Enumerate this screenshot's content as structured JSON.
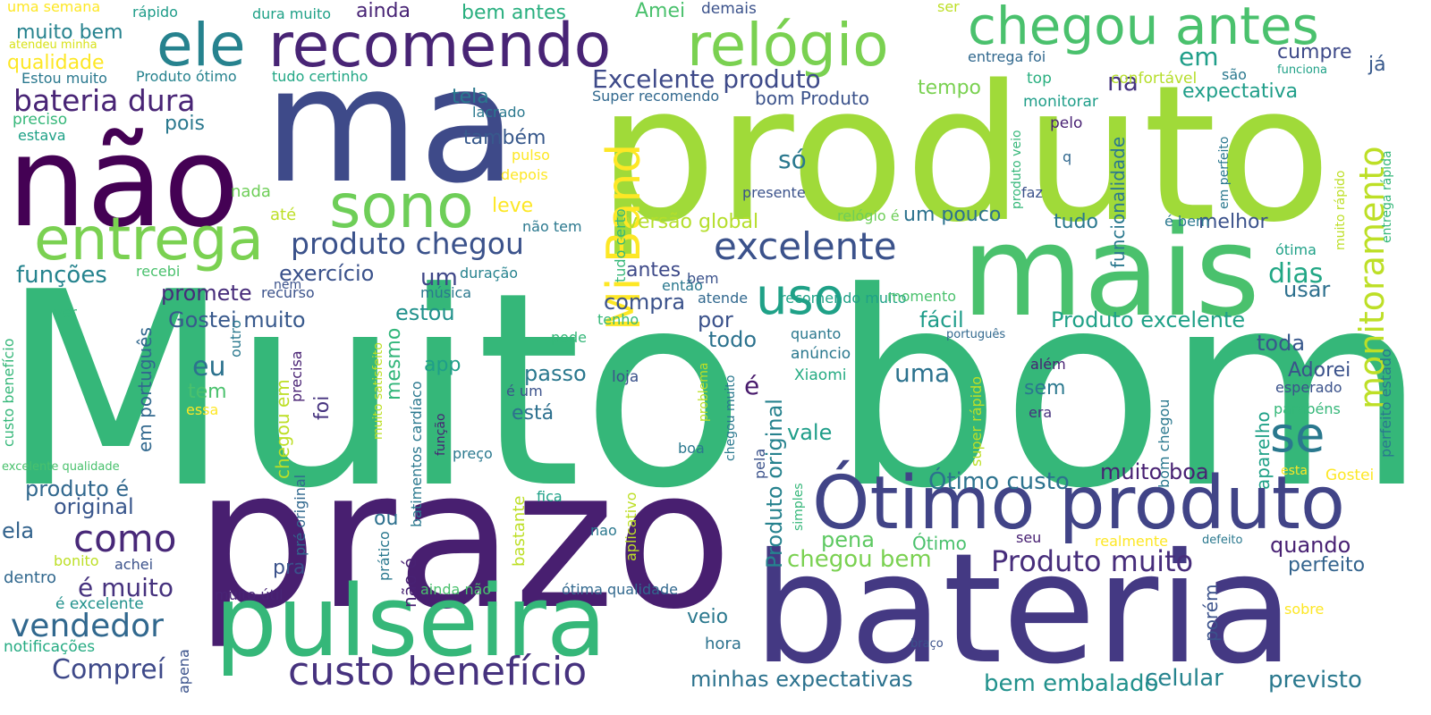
{
  "words": [
    {
      "text": "Muito bom",
      "color": "#35b779"
    },
    {
      "text": "produto",
      "color": "#a0da39"
    },
    {
      "text": "bateria",
      "color": "#443983"
    },
    {
      "text": "prazo",
      "color": "#481f70"
    },
    {
      "text": "ma",
      "color": "#3e4a89"
    },
    {
      "text": "mais",
      "color": "#4ac16d"
    },
    {
      "text": "não",
      "color": "#440154"
    },
    {
      "text": "pulseira",
      "color": "#35b779"
    },
    {
      "text": "Ótimo produto",
      "color": "#414487"
    },
    {
      "text": "recomendo",
      "color": "#482475"
    },
    {
      "text": "entrega",
      "color": "#7ad151"
    },
    {
      "text": "relógio",
      "color": "#7ad151"
    },
    {
      "text": "chegou antes",
      "color": "#4ac16d"
    },
    {
      "text": "ele",
      "color": "#26828e"
    },
    {
      "text": "sono",
      "color": "#6ece58"
    },
    {
      "text": "uso",
      "color": "#1fa187"
    },
    {
      "text": "Mi Band",
      "color": "#fde725"
    },
    {
      "text": "monitoramento",
      "color": "#bddf26"
    },
    {
      "text": "custo benefício",
      "color": "#46327e"
    },
    {
      "text": "excelente",
      "color": "#3b528b"
    },
    {
      "text": "se",
      "color": "#2a788e"
    },
    {
      "text": "como",
      "color": "#482878"
    },
    {
      "text": "Produto muito",
      "color": "#472d7b"
    },
    {
      "text": "vendedor",
      "color": "#31688e"
    },
    {
      "text": "produto chegou",
      "color": "#3b528b"
    },
    {
      "text": "bateria dura",
      "color": "#482475"
    },
    {
      "text": "Compreí",
      "color": "#3e4989"
    },
    {
      "text": "Excelente produto",
      "color": "#3e4a89"
    },
    {
      "text": "chegou bem",
      "color": "#7ad151"
    },
    {
      "text": "bem embalado",
      "color": "#21918c"
    },
    {
      "text": "minhas expectativas",
      "color": "#2c728e"
    },
    {
      "text": "celular",
      "color": "#25838e"
    },
    {
      "text": "previsto",
      "color": "#2a788e"
    },
    {
      "text": "Ótimo custo",
      "color": "#2c728e"
    },
    {
      "text": "muito boa",
      "color": "#482173"
    },
    {
      "text": "pena",
      "color": "#5ec962"
    },
    {
      "text": "quando",
      "color": "#482173"
    },
    {
      "text": "perfeito",
      "color": "#33638d"
    },
    {
      "text": "funções",
      "color": "#25838e"
    },
    {
      "text": "promete",
      "color": "#472c7a"
    },
    {
      "text": "Gostei muito",
      "color": "#38598c"
    },
    {
      "text": "exercício",
      "color": "#3b528b"
    },
    {
      "text": "um",
      "color": "#3f4788"
    },
    {
      "text": "estou",
      "color": "#21918c"
    },
    {
      "text": "eu",
      "color": "#2c728e"
    },
    {
      "text": "é muito",
      "color": "#46327e"
    },
    {
      "text": "produto é",
      "color": "#31688e"
    },
    {
      "text": "original",
      "color": "#39568c"
    },
    {
      "text": "ela",
      "color": "#33638d"
    },
    {
      "text": "dentro",
      "color": "#31688e"
    },
    {
      "text": "é excelente",
      "color": "#21918c"
    },
    {
      "text": "notificações",
      "color": "#25ab82"
    },
    {
      "text": "muito útil",
      "color": "#482475"
    },
    {
      "text": "ainda não",
      "color": "#4ac16d"
    },
    {
      "text": "ótima qualidade",
      "color": "#31688e"
    },
    {
      "text": "Produto excelente",
      "color": "#1fa187"
    },
    {
      "text": "toda",
      "color": "#38588c"
    },
    {
      "text": "fácil",
      "color": "#1e9c89"
    },
    {
      "text": "por",
      "color": "#3b528b"
    },
    {
      "text": "todo",
      "color": "#2c728e"
    },
    {
      "text": "versão global",
      "color": "#b5de2b"
    },
    {
      "text": "um pouco",
      "color": "#2c728e"
    },
    {
      "text": "tudo",
      "color": "#2a788e"
    },
    {
      "text": "melhor",
      "color": "#3b528b"
    },
    {
      "text": "dias",
      "color": "#22a785"
    },
    {
      "text": "usar",
      "color": "#2d708e"
    },
    {
      "text": "compra",
      "color": "#3b528b"
    },
    {
      "text": "antes",
      "color": "#3e4a89"
    },
    {
      "text": "Adorei",
      "color": "#3b528b"
    },
    {
      "text": "uma",
      "color": "#2c728e"
    },
    {
      "text": "sem",
      "color": "#2a788e"
    },
    {
      "text": "vale",
      "color": "#1f9e89"
    },
    {
      "text": "está",
      "color": "#2d708e"
    },
    {
      "text": "passo",
      "color": "#2a788e"
    },
    {
      "text": "app",
      "color": "#1f9e89"
    },
    {
      "text": "tem",
      "color": "#4ac16d"
    },
    {
      "text": "foi",
      "color": "#46337f"
    },
    {
      "text": "essa",
      "color": "#fde725"
    },
    {
      "text": "mesmo",
      "color": "#32b67a"
    },
    {
      "text": "pra",
      "color": "#3b528b"
    },
    {
      "text": "ou",
      "color": "#2d708e"
    },
    {
      "text": "veio",
      "color": "#2a788e"
    },
    {
      "text": "hora",
      "color": "#2c728e"
    },
    {
      "text": "é",
      "color": "#481a6c"
    },
    {
      "text": "anúncio",
      "color": "#2a788e"
    },
    {
      "text": "Xiaomi",
      "color": "#25ab82"
    },
    {
      "text": "loja",
      "color": "#3b528b"
    },
    {
      "text": "ainda",
      "color": "#482475"
    },
    {
      "text": "bem antes",
      "color": "#29af7f"
    },
    {
      "text": "Amei",
      "color": "#4ac16d"
    },
    {
      "text": "demais",
      "color": "#3b528b"
    },
    {
      "text": "tela",
      "color": "#2a788e"
    },
    {
      "text": "também",
      "color": "#38598c"
    },
    {
      "text": "leve",
      "color": "#fde725"
    },
    {
      "text": "só",
      "color": "#2a788e"
    },
    {
      "text": "em",
      "color": "#1f9e89"
    },
    {
      "text": "na",
      "color": "#46337f"
    },
    {
      "text": "tempo",
      "color": "#7ad151"
    },
    {
      "text": "cumpre",
      "color": "#3e4a89"
    },
    {
      "text": "já",
      "color": "#38598c"
    },
    {
      "text": "expectativa",
      "color": "#1f9e89"
    },
    {
      "text": "qualidade",
      "color": "#fde725"
    },
    {
      "text": "muito bem",
      "color": "#26828e"
    },
    {
      "text": "pois",
      "color": "#2a788e"
    },
    {
      "text": "nada",
      "color": "#6ece58"
    },
    {
      "text": "até",
      "color": "#bddf26"
    },
    {
      "text": "funcionalidade",
      "color": "#2a788e"
    },
    {
      "text": "confortável",
      "color": "#b5de2b"
    },
    {
      "text": "são",
      "color": "#2a788e"
    },
    {
      "text": "monitorar",
      "color": "#1f9e89"
    },
    {
      "text": "pelo",
      "color": "#482173"
    },
    {
      "text": "uma semana",
      "color": "#fde725"
    },
    {
      "text": "rápido",
      "color": "#1e9c89"
    },
    {
      "text": "dura muito",
      "color": "#1fa187"
    },
    {
      "text": "ser",
      "color": "#bddf26"
    },
    {
      "text": "atendeu minha",
      "color": "#d8e219"
    },
    {
      "text": "Estou muito",
      "color": "#2a788e"
    },
    {
      "text": "Produto ótimo",
      "color": "#26828e"
    },
    {
      "text": "tudo certinho",
      "color": "#22a785"
    },
    {
      "text": "entrega foi",
      "color": "#31688e"
    },
    {
      "text": "top",
      "color": "#29af7f"
    },
    {
      "text": "funciona",
      "color": "#1fa187"
    },
    {
      "text": "preciso",
      "color": "#35b779"
    },
    {
      "text": "estava",
      "color": "#1fa187"
    },
    {
      "text": "lacrado",
      "color": "#2a788e"
    },
    {
      "text": "Super recomendo",
      "color": "#31688e"
    },
    {
      "text": "bom Produto",
      "color": "#3b528b"
    },
    {
      "text": "pulso",
      "color": "#fde725"
    },
    {
      "text": "depois",
      "color": "#fde725"
    },
    {
      "text": "não tem",
      "color": "#2a788e"
    },
    {
      "text": "presente",
      "color": "#3b528b"
    },
    {
      "text": "relógio é",
      "color": "#6ece58"
    },
    {
      "text": "é bem",
      "color": "#2a788e"
    },
    {
      "text": "faz",
      "color": "#3b528b"
    },
    {
      "text": "q",
      "color": "#31688e"
    },
    {
      "text": "ótima",
      "color": "#1fa187"
    },
    {
      "text": "recebi",
      "color": "#4ac16d"
    },
    {
      "text": "recurso",
      "color": "#3b528b"
    },
    {
      "text": "música",
      "color": "#2a788e"
    },
    {
      "text": "duração",
      "color": "#26828e"
    },
    {
      "text": "bem",
      "color": "#3b528b"
    },
    {
      "text": "então",
      "color": "#2a788e"
    },
    {
      "text": "tenho",
      "color": "#35b779"
    },
    {
      "text": "atende",
      "color": "#31688e"
    },
    {
      "text": "recomendo muito",
      "color": "#1fa187"
    },
    {
      "text": "momento",
      "color": "#4ac16d"
    },
    {
      "text": "português",
      "color": "#31688e"
    },
    {
      "text": "quanto",
      "color": "#2a788e"
    },
    {
      "text": "além",
      "color": "#482173"
    },
    {
      "text": "esperado",
      "color": "#3b528b"
    },
    {
      "text": "parabéns",
      "color": "#35b779"
    },
    {
      "text": "era",
      "color": "#46327e"
    },
    {
      "text": "esta",
      "color": "#fde725"
    },
    {
      "text": "Gostei",
      "color": "#fde725"
    },
    {
      "text": "seu",
      "color": "#482173"
    },
    {
      "text": "realmente",
      "color": "#fde725"
    },
    {
      "text": "defeito",
      "color": "#2a788e"
    },
    {
      "text": "sobre",
      "color": "#fde725"
    },
    {
      "text": "braço",
      "color": "#3b528b"
    },
    {
      "text": "Ótimo",
      "color": "#4ac16d"
    },
    {
      "text": "é um",
      "color": "#3b528b"
    },
    {
      "text": "preço",
      "color": "#2a788e"
    },
    {
      "text": "boa",
      "color": "#2a788e"
    },
    {
      "text": "fica",
      "color": "#1fa187"
    },
    {
      "text": "nao",
      "color": "#2a788e"
    },
    {
      "text": "pode",
      "color": "#35b779"
    },
    {
      "text": "bonito",
      "color": "#bddf26"
    },
    {
      "text": "achei",
      "color": "#3b528b"
    },
    {
      "text": "ver",
      "color": "#35b779"
    },
    {
      "text": "excelente qualidade",
      "color": "#4ac16d"
    },
    {
      "text": "chegou em",
      "color": "#bddf26"
    },
    {
      "text": "em português",
      "color": "#31688e"
    },
    {
      "text": "outro",
      "color": "#2a788e"
    },
    {
      "text": "precisa",
      "color": "#482173"
    },
    {
      "text": "muito satisfeito",
      "color": "#bddf26"
    },
    {
      "text": "batimentos cardíaco",
      "color": "#2a788e"
    },
    {
      "text": "função",
      "color": "#482173"
    },
    {
      "text": "bastante",
      "color": "#bddf26"
    },
    {
      "text": "aplicativo",
      "color": "#bddf26"
    },
    {
      "text": "não é",
      "color": "#482173"
    },
    {
      "text": "prático",
      "color": "#2a788e"
    },
    {
      "text": "apena",
      "color": "#3b528b"
    },
    {
      "text": "nem",
      "color": "#3b528b"
    },
    {
      "text": "custo benefício",
      "color": "#35b779"
    },
    {
      "text": "problema",
      "color": "#bddf26"
    },
    {
      "text": "chegou muito",
      "color": "#2a788e"
    },
    {
      "text": "pela",
      "color": "#3b528b"
    },
    {
      "text": "simples",
      "color": "#35b779"
    },
    {
      "text": "pré original",
      "color": "#31688e"
    },
    {
      "text": "super rápido",
      "color": "#bddf26"
    },
    {
      "text": "bom chegou",
      "color": "#2a788e"
    },
    {
      "text": "aparelho",
      "color": "#1fa187"
    },
    {
      "text": "Produto original",
      "color": "#26828e"
    },
    {
      "text": "porém",
      "color": "#3b528b"
    },
    {
      "text": "produto veio",
      "color": "#35b779"
    },
    {
      "text": "em perfeito",
      "color": "#2a788e"
    },
    {
      "text": "muito rápido",
      "color": "#bddf26"
    },
    {
      "text": "entrega rápida",
      "color": "#35b779"
    },
    {
      "text": "perfeito estado",
      "color": "#2a788e"
    },
    {
      "text": "tudo certo",
      "color": "#35b779"
    }
  ]
}
